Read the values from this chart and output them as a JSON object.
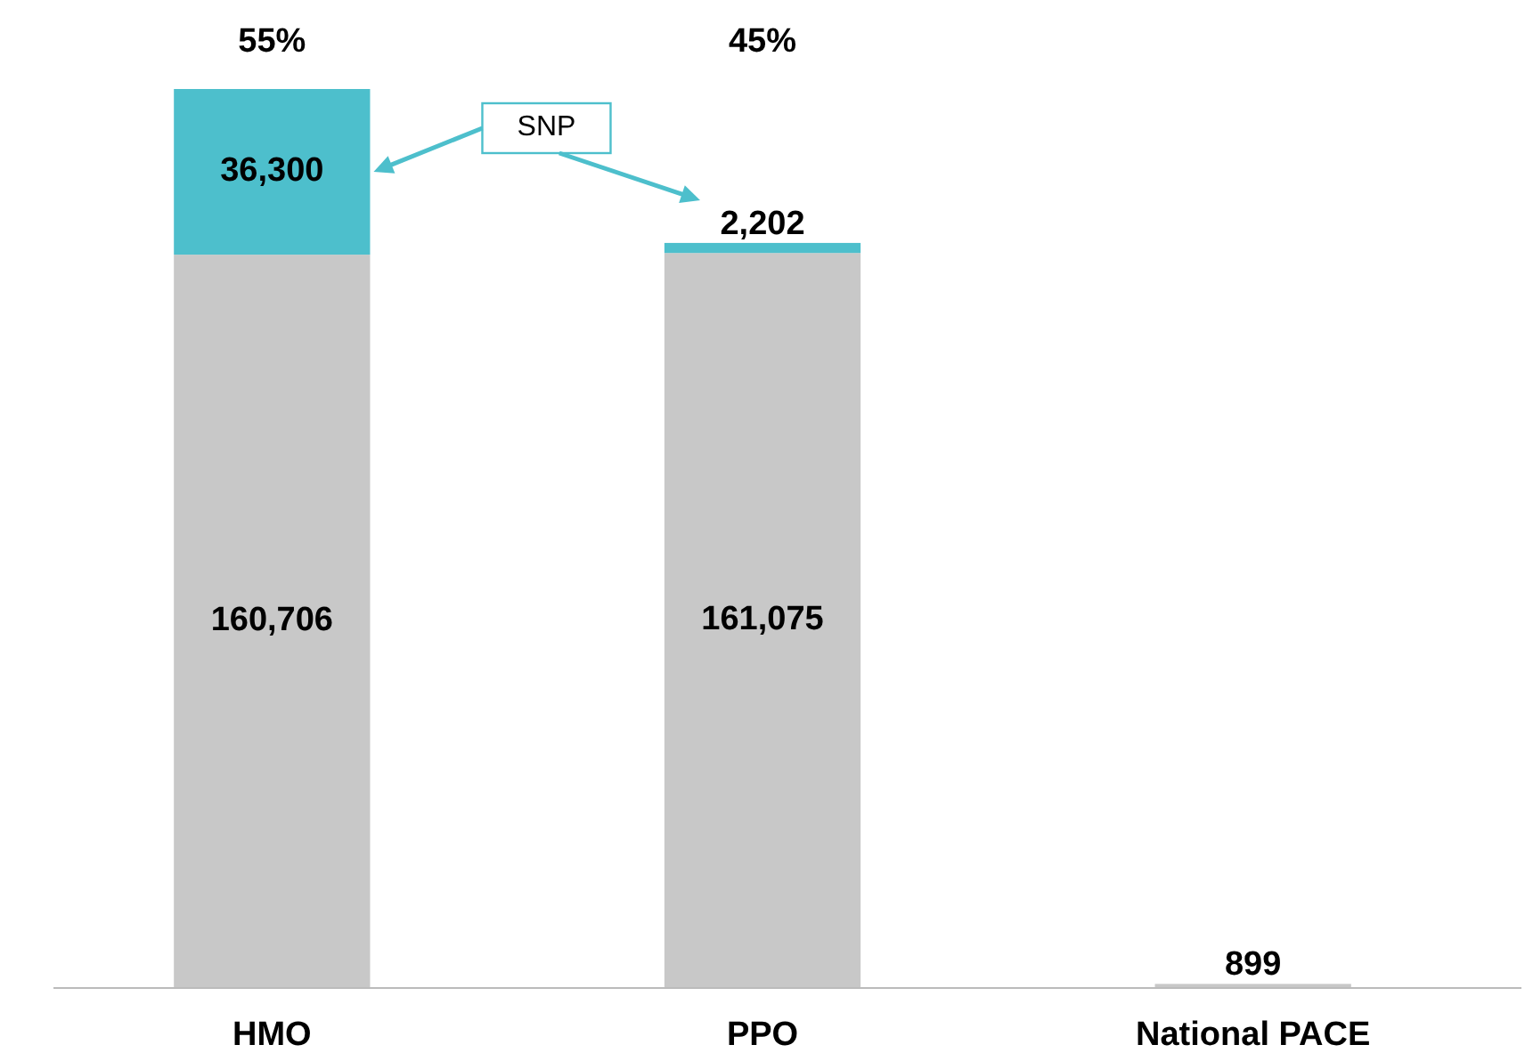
{
  "chart_data": {
    "type": "bar",
    "stacked": true,
    "categories": [
      "HMO",
      "PPO",
      "National PACE"
    ],
    "series": [
      {
        "color": "#c8c8c8",
        "values": [
          160706,
          161075,
          899
        ],
        "value_labels": [
          "160,706",
          "161,075",
          "899"
        ]
      },
      {
        "name": "SNP",
        "color": "#4dbfcc",
        "values": [
          36300,
          2202,
          null
        ],
        "value_labels": [
          "36,300",
          "2,202",
          null
        ]
      }
    ],
    "annotations": [
      "55%",
      "45%"
    ]
  }
}
